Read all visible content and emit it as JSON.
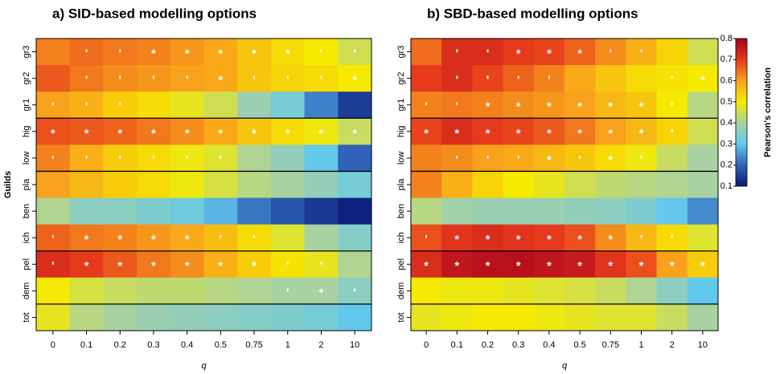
{
  "chart_data": [
    {
      "type": "heatmap",
      "title": "a) SID-based modelling options",
      "xlabel": "q",
      "ylabel": "Guilds",
      "categories": [
        "0",
        "0.1",
        "0.2",
        "0.3",
        "0.4",
        "0.5",
        "0.75",
        "1",
        "2",
        "10"
      ],
      "rows": [
        "gr3",
        "gr2",
        "gr1",
        "hig",
        "low",
        "pla",
        "ben",
        "ich",
        "pel",
        "dem",
        "tot"
      ],
      "zlim": [
        0.1,
        0.8
      ],
      "colorscale": [
        [
          0.1,
          "#0a1a7a"
        ],
        [
          0.2,
          "#2f62b8"
        ],
        [
          0.3,
          "#62c8ec"
        ],
        [
          0.4,
          "#a8d2a2"
        ],
        [
          0.5,
          "#f6ea00"
        ],
        [
          0.6,
          "#f8a11c"
        ],
        [
          0.7,
          "#e63a1c"
        ],
        [
          0.8,
          "#a5001c"
        ]
      ],
      "values": [
        [
          0.63,
          0.65,
          0.64,
          0.63,
          0.61,
          0.59,
          0.55,
          0.52,
          0.5,
          0.45
        ],
        [
          0.67,
          0.64,
          0.62,
          0.61,
          0.6,
          0.59,
          0.55,
          0.53,
          0.52,
          0.5
        ],
        [
          0.6,
          0.58,
          0.54,
          0.52,
          0.48,
          0.45,
          0.38,
          0.33,
          0.23,
          0.15
        ],
        [
          0.68,
          0.67,
          0.66,
          0.64,
          0.62,
          0.59,
          0.55,
          0.52,
          0.49,
          0.44
        ],
        [
          0.63,
          0.58,
          0.54,
          0.52,
          0.49,
          0.47,
          0.41,
          0.37,
          0.3,
          0.2
        ],
        [
          0.6,
          0.57,
          0.54,
          0.52,
          0.49,
          0.46,
          0.42,
          0.4,
          0.37,
          0.33
        ],
        [
          0.41,
          0.36,
          0.36,
          0.34,
          0.32,
          0.28,
          0.22,
          0.18,
          0.14,
          0.11
        ],
        [
          0.66,
          0.64,
          0.63,
          0.61,
          0.59,
          0.56,
          0.52,
          0.47,
          0.4,
          0.35
        ],
        [
          0.72,
          0.7,
          0.67,
          0.64,
          0.62,
          0.58,
          0.54,
          0.51,
          0.48,
          0.41
        ],
        [
          0.5,
          0.46,
          0.44,
          0.43,
          0.43,
          0.42,
          0.41,
          0.4,
          0.4,
          0.36
        ],
        [
          0.48,
          0.42,
          0.4,
          0.38,
          0.37,
          0.36,
          0.35,
          0.34,
          0.33,
          0.3
        ]
      ],
      "marks": [
        [
          null,
          "'",
          "'",
          "*",
          "*",
          "*",
          "*",
          "*",
          "'",
          "'"
        ],
        [
          null,
          "'",
          "'",
          "'",
          "'",
          "*",
          "'",
          "'",
          "'",
          "*"
        ],
        [
          "'",
          "'",
          "'",
          null,
          null,
          null,
          null,
          null,
          null,
          null
        ],
        [
          "*",
          "*",
          "*",
          "*",
          "*",
          "*",
          "*",
          "*",
          "*",
          "*"
        ],
        [
          "'",
          "'",
          "'",
          "'",
          "'",
          "'",
          null,
          null,
          null,
          null
        ],
        [
          null,
          null,
          null,
          null,
          null,
          null,
          null,
          null,
          null,
          null
        ],
        [
          null,
          null,
          null,
          null,
          null,
          null,
          null,
          null,
          null,
          null
        ],
        [
          "'",
          "*",
          "*",
          "*",
          "*",
          "'",
          "'",
          null,
          null,
          null
        ],
        [
          "'",
          "*",
          "*",
          "*",
          "*",
          "*",
          "*",
          "'",
          "'",
          null
        ],
        [
          null,
          null,
          null,
          null,
          null,
          null,
          null,
          "'",
          "*",
          "'"
        ],
        [
          null,
          null,
          null,
          null,
          null,
          null,
          null,
          null,
          null,
          null
        ]
      ]
    },
    {
      "type": "heatmap",
      "title": "b) SBD-based modelling options",
      "xlabel": "q",
      "categories": [
        "0",
        "0.1",
        "0.2",
        "0.3",
        "0.4",
        "0.5",
        "0.75",
        "1",
        "2",
        "10"
      ],
      "rows": [
        "gr3",
        "gr2",
        "gr1",
        "hig",
        "low",
        "pla",
        "ben",
        "ich",
        "pel",
        "dem",
        "tot"
      ],
      "zlim": [
        0.1,
        0.8
      ],
      "colorscale": [
        [
          0.1,
          "#0a1a7a"
        ],
        [
          0.2,
          "#2f62b8"
        ],
        [
          0.3,
          "#62c8ec"
        ],
        [
          0.4,
          "#a8d2a2"
        ],
        [
          0.5,
          "#f6ea00"
        ],
        [
          0.6,
          "#f8a11c"
        ],
        [
          0.7,
          "#e63a1c"
        ],
        [
          0.8,
          "#a5001c"
        ]
      ],
      "colorbar": {
        "label": "Pearson's correlation",
        "zticks": [
          0.1,
          0.2,
          0.3,
          0.4,
          0.5,
          0.6,
          0.7,
          0.8
        ]
      },
      "values": [
        [
          0.65,
          0.72,
          0.72,
          0.7,
          0.69,
          0.66,
          0.62,
          0.58,
          0.53,
          0.45
        ],
        [
          0.7,
          0.72,
          0.69,
          0.66,
          0.63,
          0.59,
          0.55,
          0.52,
          0.51,
          0.5
        ],
        [
          0.63,
          0.64,
          0.63,
          0.62,
          0.61,
          0.6,
          0.57,
          0.55,
          0.5,
          0.42
        ],
        [
          0.69,
          0.72,
          0.7,
          0.69,
          0.67,
          0.64,
          0.6,
          0.57,
          0.53,
          0.45
        ],
        [
          0.63,
          0.62,
          0.6,
          0.59,
          0.57,
          0.55,
          0.52,
          0.49,
          0.44,
          0.4
        ],
        [
          0.63,
          0.58,
          0.53,
          0.5,
          0.48,
          0.45,
          0.43,
          0.42,
          0.41,
          0.4
        ],
        [
          0.42,
          0.39,
          0.38,
          0.38,
          0.38,
          0.37,
          0.36,
          0.34,
          0.3,
          0.24
        ],
        [
          0.68,
          0.71,
          0.72,
          0.71,
          0.7,
          0.68,
          0.62,
          0.57,
          0.52,
          0.47
        ],
        [
          0.72,
          0.76,
          0.77,
          0.77,
          0.76,
          0.75,
          0.71,
          0.68,
          0.6,
          0.54
        ],
        [
          0.5,
          0.49,
          0.49,
          0.48,
          0.47,
          0.46,
          0.44,
          0.41,
          0.36,
          0.3
        ],
        [
          0.48,
          0.49,
          0.5,
          0.5,
          0.49,
          0.48,
          0.47,
          0.47,
          0.44,
          0.4
        ]
      ],
      "marks": [
        [
          null,
          "'",
          "'",
          "*",
          "*",
          "*",
          "'",
          "'",
          null,
          null
        ],
        [
          null,
          "'",
          "'",
          "'",
          "'",
          null,
          null,
          null,
          "'",
          "*"
        ],
        [
          "'",
          "'",
          "*",
          "*",
          "*",
          "*",
          "*",
          "*",
          "'",
          null
        ],
        [
          "*",
          "*",
          "*",
          "*",
          "*",
          "*",
          "*",
          "*",
          "'",
          null
        ],
        [
          null,
          "'",
          "'",
          "'",
          "*",
          "'",
          "*",
          "'",
          null,
          null
        ],
        [
          null,
          null,
          null,
          null,
          null,
          null,
          null,
          null,
          null,
          null
        ],
        [
          null,
          null,
          null,
          null,
          null,
          null,
          null,
          null,
          null,
          null
        ],
        [
          "'",
          "*",
          "*",
          "*",
          "*",
          "*",
          "*",
          "'",
          "'",
          null
        ],
        [
          "*",
          "*",
          "*",
          "*",
          "*",
          "*",
          "*",
          "*",
          "*",
          "*"
        ],
        [
          null,
          null,
          null,
          null,
          null,
          null,
          null,
          null,
          null,
          null
        ],
        [
          null,
          null,
          null,
          null,
          null,
          null,
          null,
          null,
          null,
          null
        ]
      ]
    }
  ]
}
